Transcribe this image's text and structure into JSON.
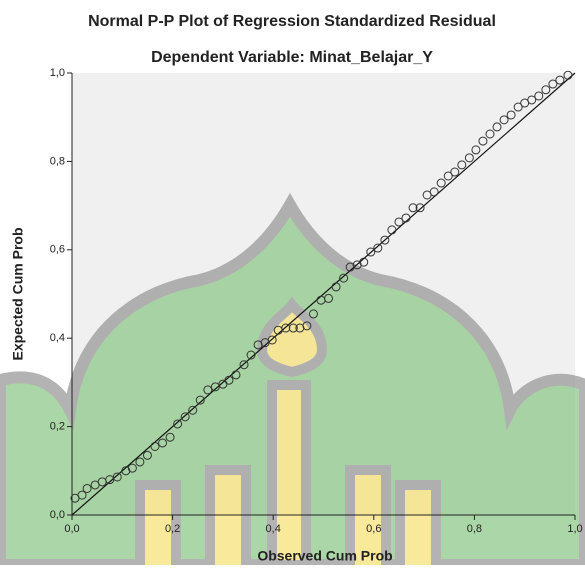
{
  "chart_data": {
    "type": "scatter",
    "title": "Normal P-P Plot of Regression Standardized Residual",
    "subtitle": "Dependent Variable: Minat_Belajar_Y",
    "x_label": "Observed Cum Prob",
    "y_label": "Expected Cum Prob",
    "xlim": [
      0,
      1
    ],
    "ylim": [
      0,
      1
    ],
    "xticks": [
      {
        "value": 0,
        "label": "0,0"
      },
      {
        "value": 0.2,
        "label": "0,2"
      },
      {
        "value": 0.4,
        "label": "0,4"
      },
      {
        "value": 0.6,
        "label": "0,6"
      },
      {
        "value": 0.8,
        "label": "0,8"
      },
      {
        "value": 1,
        "label": "1,0"
      }
    ],
    "yticks": [
      {
        "value": 0,
        "label": "0,0"
      },
      {
        "value": 0.2,
        "label": "0,2"
      },
      {
        "value": 0.4,
        "label": "0,4"
      },
      {
        "value": 0.6,
        "label": "0,6"
      },
      {
        "value": 0.8,
        "label": "0,8"
      },
      {
        "value": 1,
        "label": "1,0"
      }
    ],
    "color": "#333333",
    "x": [
      0.006,
      0.02,
      0.03,
      0.046,
      0.06,
      0.075,
      0.09,
      0.107,
      0.12,
      0.135,
      0.15,
      0.165,
      0.18,
      0.195,
      0.21,
      0.225,
      0.24,
      0.255,
      0.27,
      0.285,
      0.3,
      0.312,
      0.326,
      0.342,
      0.356,
      0.37,
      0.384,
      0.398,
      0.41,
      0.425,
      0.44,
      0.453,
      0.467,
      0.48,
      0.495,
      0.51,
      0.525,
      0.54,
      0.553,
      0.567,
      0.58,
      0.594,
      0.608,
      0.622,
      0.636,
      0.65,
      0.664,
      0.678,
      0.692,
      0.706,
      0.72,
      0.734,
      0.748,
      0.761,
      0.775,
      0.79,
      0.803,
      0.817,
      0.831,
      0.845,
      0.859,
      0.873,
      0.887,
      0.9,
      0.914,
      0.928,
      0.942,
      0.956,
      0.97,
      0.986
    ],
    "values": [
      0.038,
      0.045,
      0.06,
      0.068,
      0.075,
      0.08,
      0.086,
      0.1,
      0.106,
      0.12,
      0.135,
      0.155,
      0.163,
      0.176,
      0.206,
      0.222,
      0.237,
      0.26,
      0.283,
      0.29,
      0.296,
      0.305,
      0.317,
      0.34,
      0.362,
      0.385,
      0.39,
      0.396,
      0.418,
      0.423,
      0.423,
      0.423,
      0.428,
      0.455,
      0.486,
      0.49,
      0.516,
      0.536,
      0.561,
      0.566,
      0.572,
      0.595,
      0.604,
      0.622,
      0.645,
      0.663,
      0.672,
      0.695,
      0.695,
      0.724,
      0.731,
      0.751,
      0.767,
      0.776,
      0.792,
      0.808,
      0.826,
      0.846,
      0.862,
      0.878,
      0.894,
      0.905,
      0.923,
      0.932,
      0.939,
      0.948,
      0.962,
      0.975,
      0.984,
      0.995
    ]
  }
}
